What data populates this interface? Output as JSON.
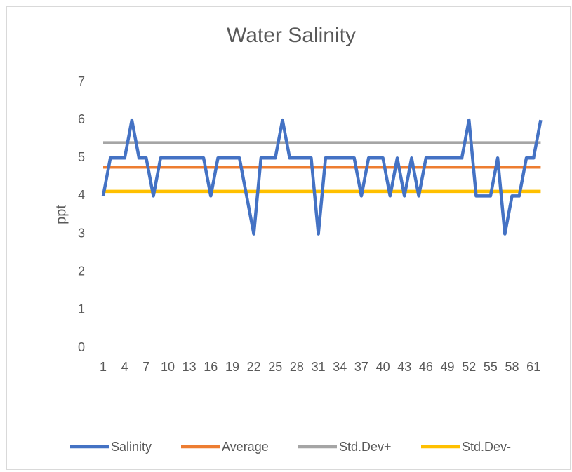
{
  "chart_data": {
    "type": "line",
    "title": "Water Salinity",
    "y_label": "ppt",
    "categories": [
      "1",
      null,
      null,
      "4",
      null,
      null,
      "7",
      null,
      null,
      "10",
      null,
      null,
      "13",
      null,
      null,
      "16",
      null,
      null,
      "19",
      null,
      null,
      "22",
      null,
      null,
      "25",
      null,
      null,
      "28",
      null,
      null,
      "31",
      null,
      null,
      "34",
      null,
      null,
      "37",
      null,
      null,
      "40",
      null,
      null,
      "43",
      null,
      null,
      "46",
      null,
      null,
      "49",
      null,
      null,
      "52",
      null,
      null,
      "55",
      null,
      null,
      "58",
      null,
      null,
      "61",
      null
    ],
    "series": [
      {
        "name": "Salinity",
        "color": "#4472c4",
        "values": [
          4,
          5,
          5,
          5,
          6,
          5,
          5,
          4,
          5,
          5,
          5,
          5,
          5,
          5,
          5,
          4,
          5,
          5,
          5,
          5,
          4,
          3,
          5,
          5,
          5,
          6,
          5,
          5,
          5,
          5,
          3,
          5,
          5,
          5,
          5,
          5,
          4,
          5,
          5,
          5,
          4,
          5,
          4,
          5,
          4,
          5,
          5,
          5,
          5,
          5,
          5,
          6,
          4,
          4,
          4,
          5,
          3,
          4,
          4,
          5,
          5,
          6
        ]
      },
      {
        "name": "Average",
        "color": "#ed7d31",
        "values": [
          4.76,
          4.76,
          4.76,
          4.76,
          4.76,
          4.76,
          4.76,
          4.76,
          4.76,
          4.76,
          4.76,
          4.76,
          4.76,
          4.76,
          4.76,
          4.76,
          4.76,
          4.76,
          4.76,
          4.76,
          4.76,
          4.76,
          4.76,
          4.76,
          4.76,
          4.76,
          4.76,
          4.76,
          4.76,
          4.76,
          4.76,
          4.76,
          4.76,
          4.76,
          4.76,
          4.76,
          4.76,
          4.76,
          4.76,
          4.76,
          4.76,
          4.76,
          4.76,
          4.76,
          4.76,
          4.76,
          4.76,
          4.76,
          4.76,
          4.76,
          4.76,
          4.76,
          4.76,
          4.76,
          4.76,
          4.76,
          4.76,
          4.76,
          4.76,
          4.76,
          4.76,
          4.76
        ]
      },
      {
        "name": "Std.Dev+",
        "color": "#a5a5a5",
        "values": [
          5.4,
          5.4,
          5.4,
          5.4,
          5.4,
          5.4,
          5.4,
          5.4,
          5.4,
          5.4,
          5.4,
          5.4,
          5.4,
          5.4,
          5.4,
          5.4,
          5.4,
          5.4,
          5.4,
          5.4,
          5.4,
          5.4,
          5.4,
          5.4,
          5.4,
          5.4,
          5.4,
          5.4,
          5.4,
          5.4,
          5.4,
          5.4,
          5.4,
          5.4,
          5.4,
          5.4,
          5.4,
          5.4,
          5.4,
          5.4,
          5.4,
          5.4,
          5.4,
          5.4,
          5.4,
          5.4,
          5.4,
          5.4,
          5.4,
          5.4,
          5.4,
          5.4,
          5.4,
          5.4,
          5.4,
          5.4,
          5.4,
          5.4,
          5.4,
          5.4,
          5.4,
          5.4
        ]
      },
      {
        "name": "Std.Dev-",
        "color": "#ffc000",
        "values": [
          4.12,
          4.12,
          4.12,
          4.12,
          4.12,
          4.12,
          4.12,
          4.12,
          4.12,
          4.12,
          4.12,
          4.12,
          4.12,
          4.12,
          4.12,
          4.12,
          4.12,
          4.12,
          4.12,
          4.12,
          4.12,
          4.12,
          4.12,
          4.12,
          4.12,
          4.12,
          4.12,
          4.12,
          4.12,
          4.12,
          4.12,
          4.12,
          4.12,
          4.12,
          4.12,
          4.12,
          4.12,
          4.12,
          4.12,
          4.12,
          4.12,
          4.12,
          4.12,
          4.12,
          4.12,
          4.12,
          4.12,
          4.12,
          4.12,
          4.12,
          4.12,
          4.12,
          4.12,
          4.12,
          4.12,
          4.12,
          4.12,
          4.12,
          4.12,
          4.12,
          4.12,
          4.12
        ]
      }
    ],
    "ylim": [
      0,
      7
    ],
    "yticks": [
      0,
      1,
      2,
      3,
      4,
      5,
      6,
      7
    ],
    "grid": false,
    "legend": "bottom"
  }
}
